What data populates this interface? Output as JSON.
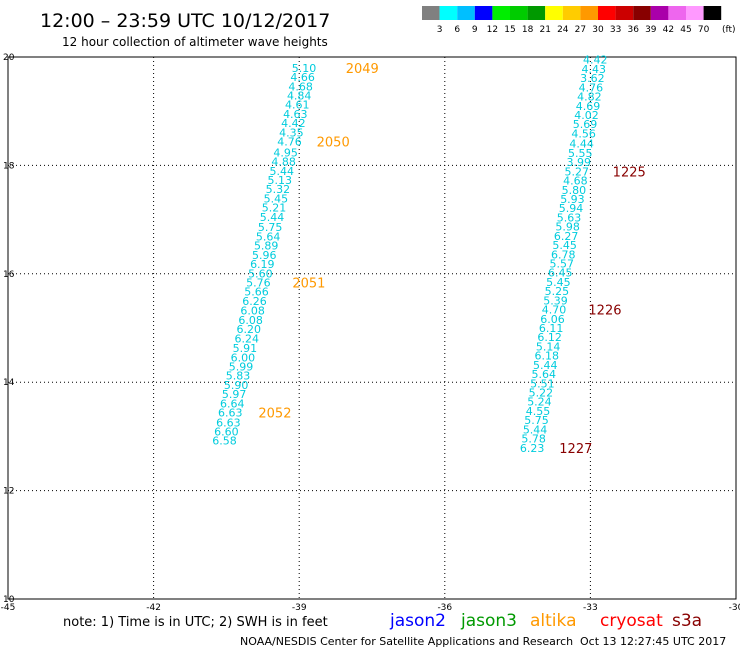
{
  "header": {
    "title": "12:00 – 23:59 UTC 10/12/2017",
    "subtitle": "12 hour collection of altimeter wave heights"
  },
  "colorbar": {
    "colors": [
      "#808080",
      "#00ffff",
      "#00bfff",
      "#0000ff",
      "#00ee00",
      "#00cc00",
      "#009900",
      "#ffff00",
      "#ffcc00",
      "#ff9900",
      "#ff0000",
      "#cc0000",
      "#880000",
      "#aa00aa",
      "#ee66ee",
      "#ff99ff",
      "#000000"
    ],
    "labels": [
      "3",
      "6",
      "9",
      "12",
      "15",
      "18",
      "21",
      "24",
      "27",
      "30",
      "33",
      "36",
      "39",
      "42",
      "45",
      "70"
    ],
    "unit": "(ft)"
  },
  "footer": {
    "note": "note:  1) Time is in UTC;  2) SWH is in feet",
    "legend": [
      {
        "name": "jason2",
        "color": "#0000ff"
      },
      {
        "name": "jason3",
        "color": "#009900"
      },
      {
        "name": "altika",
        "color": "#ff9900"
      },
      {
        "name": "cryosat",
        "color": "#ff0000"
      },
      {
        "name": "s3a",
        "color": "#880000"
      }
    ],
    "credit": "NOAA/NESDIS Center for Satellite Applications and Research",
    "timestamp": "Oct 13 12:27:45 UTC 2017"
  },
  "chart_data": {
    "type": "scatter",
    "xlim": [
      -45,
      -30
    ],
    "ylim": [
      10,
      20
    ],
    "xticks": [
      "-45",
      "-42",
      "-39",
      "-36",
      "-33",
      "-30"
    ],
    "yticks": [
      "10",
      "12",
      "14",
      "16",
      "18",
      "20"
    ],
    "grid": true,
    "value_color": "#00ccdd",
    "tracks": [
      {
        "satellite": "altika",
        "points": [
          {
            "x": -38.9,
            "y": 19.8,
            "v": "5.10"
          },
          {
            "x": -38.93,
            "y": 19.63,
            "v": "4.66"
          },
          {
            "x": -38.97,
            "y": 19.46,
            "v": "4.68"
          },
          {
            "x": -39.0,
            "y": 19.29,
            "v": "4.84"
          },
          {
            "x": -39.04,
            "y": 19.12,
            "v": "4.61"
          },
          {
            "x": -39.08,
            "y": 18.95,
            "v": "4.63"
          },
          {
            "x": -39.12,
            "y": 18.78,
            "v": "4.42"
          },
          {
            "x": -39.16,
            "y": 18.61,
            "v": "4.35"
          },
          {
            "x": -39.2,
            "y": 18.44,
            "v": "4.76"
          },
          {
            "x": -39.28,
            "y": 18.24,
            "v": "4.95"
          },
          {
            "x": -39.32,
            "y": 18.07,
            "v": "4.88"
          },
          {
            "x": -39.36,
            "y": 17.9,
            "v": "5.44"
          },
          {
            "x": -39.4,
            "y": 17.73,
            "v": "5.13"
          },
          {
            "x": -39.44,
            "y": 17.56,
            "v": "5.32"
          },
          {
            "x": -39.48,
            "y": 17.39,
            "v": "5.45"
          },
          {
            "x": -39.52,
            "y": 17.22,
            "v": "5.21"
          },
          {
            "x": -39.56,
            "y": 17.05,
            "v": "5.44"
          },
          {
            "x": -39.6,
            "y": 16.86,
            "v": "5.75"
          },
          {
            "x": -39.64,
            "y": 16.69,
            "v": "5.64"
          },
          {
            "x": -39.68,
            "y": 16.52,
            "v": "5.89"
          },
          {
            "x": -39.72,
            "y": 16.35,
            "v": "5.96"
          },
          {
            "x": -39.76,
            "y": 16.18,
            "v": "6.19"
          },
          {
            "x": -39.8,
            "y": 16.01,
            "v": "5.60"
          },
          {
            "x": -39.84,
            "y": 15.84,
            "v": "5.76"
          },
          {
            "x": -39.88,
            "y": 15.67,
            "v": "5.66"
          },
          {
            "x": -39.92,
            "y": 15.5,
            "v": "6.26"
          },
          {
            "x": -39.96,
            "y": 15.32,
            "v": "6.08"
          },
          {
            "x": -40.0,
            "y": 15.15,
            "v": "6.08"
          },
          {
            "x": -40.04,
            "y": 14.98,
            "v": "6.20"
          },
          {
            "x": -40.08,
            "y": 14.81,
            "v": "6.24"
          },
          {
            "x": -40.12,
            "y": 14.63,
            "v": "5.91"
          },
          {
            "x": -40.16,
            "y": 14.46,
            "v": "6.00"
          },
          {
            "x": -40.2,
            "y": 14.29,
            "v": "5.99"
          },
          {
            "x": -40.26,
            "y": 14.12,
            "v": "5.83"
          },
          {
            "x": -40.3,
            "y": 13.95,
            "v": "5.90"
          },
          {
            "x": -40.34,
            "y": 13.78,
            "v": "5.97"
          },
          {
            "x": -40.38,
            "y": 13.61,
            "v": "6.64"
          },
          {
            "x": -40.42,
            "y": 13.44,
            "v": "6.63"
          },
          {
            "x": -40.46,
            "y": 13.26,
            "v": "6.63"
          },
          {
            "x": -40.5,
            "y": 13.09,
            "v": "6.60"
          },
          {
            "x": -40.54,
            "y": 12.92,
            "v": "6.58"
          }
        ],
        "passes": [
          {
            "label": "2049",
            "x": -37.7,
            "y": 19.8
          },
          {
            "label": "2050",
            "x": -38.3,
            "y": 18.44
          },
          {
            "label": "2051",
            "x": -38.8,
            "y": 15.84
          },
          {
            "label": "2052",
            "x": -39.5,
            "y": 13.44
          }
        ]
      },
      {
        "satellite": "s3a",
        "points": [
          {
            "x": -32.9,
            "y": 19.95,
            "v": "4.42"
          },
          {
            "x": -32.93,
            "y": 19.78,
            "v": "4.43"
          },
          {
            "x": -32.96,
            "y": 19.61,
            "v": "3.62"
          },
          {
            "x": -32.99,
            "y": 19.44,
            "v": "4.76"
          },
          {
            "x": -33.02,
            "y": 19.27,
            "v": "4.82"
          },
          {
            "x": -33.05,
            "y": 19.1,
            "v": "4.69"
          },
          {
            "x": -33.08,
            "y": 18.93,
            "v": "4.02"
          },
          {
            "x": -33.11,
            "y": 18.76,
            "v": "5.69"
          },
          {
            "x": -33.14,
            "y": 18.59,
            "v": "4.56"
          },
          {
            "x": -33.18,
            "y": 18.4,
            "v": "4.44"
          },
          {
            "x": -33.21,
            "y": 18.23,
            "v": "5.55"
          },
          {
            "x": -33.24,
            "y": 18.06,
            "v": "3.99"
          },
          {
            "x": -33.28,
            "y": 17.89,
            "v": "5.27"
          },
          {
            "x": -33.31,
            "y": 17.72,
            "v": "4.68"
          },
          {
            "x": -33.34,
            "y": 17.55,
            "v": "5.80"
          },
          {
            "x": -33.37,
            "y": 17.38,
            "v": "5.93"
          },
          {
            "x": -33.4,
            "y": 17.21,
            "v": "5.94"
          },
          {
            "x": -33.44,
            "y": 17.04,
            "v": "5.63"
          },
          {
            "x": -33.47,
            "y": 16.87,
            "v": "5.98"
          },
          {
            "x": -33.5,
            "y": 16.7,
            "v": "6.27"
          },
          {
            "x": -33.53,
            "y": 16.53,
            "v": "5.45"
          },
          {
            "x": -33.56,
            "y": 16.36,
            "v": "6.78"
          },
          {
            "x": -33.59,
            "y": 16.19,
            "v": "5.57"
          },
          {
            "x": -33.62,
            "y": 16.02,
            "v": "6.45"
          },
          {
            "x": -33.66,
            "y": 15.85,
            "v": "5.45"
          },
          {
            "x": -33.69,
            "y": 15.68,
            "v": "5.25"
          },
          {
            "x": -33.72,
            "y": 15.51,
            "v": "5.39"
          },
          {
            "x": -33.75,
            "y": 15.34,
            "v": "4.70"
          },
          {
            "x": -33.78,
            "y": 15.17,
            "v": "6.06"
          },
          {
            "x": -33.81,
            "y": 15.0,
            "v": "6.11"
          },
          {
            "x": -33.84,
            "y": 14.83,
            "v": "6.12"
          },
          {
            "x": -33.87,
            "y": 14.66,
            "v": "5.14"
          },
          {
            "x": -33.9,
            "y": 14.49,
            "v": "6.18"
          },
          {
            "x": -33.93,
            "y": 14.32,
            "v": "5.44"
          },
          {
            "x": -33.96,
            "y": 14.15,
            "v": "5.64"
          },
          {
            "x": -33.99,
            "y": 13.98,
            "v": "5.51"
          },
          {
            "x": -34.02,
            "y": 13.81,
            "v": "5.22"
          },
          {
            "x": -34.05,
            "y": 13.64,
            "v": "5.24"
          },
          {
            "x": -34.08,
            "y": 13.47,
            "v": "4.55"
          },
          {
            "x": -34.11,
            "y": 13.3,
            "v": "5.75"
          },
          {
            "x": -34.14,
            "y": 13.13,
            "v": "5.44"
          },
          {
            "x": -34.17,
            "y": 12.96,
            "v": "5.78"
          },
          {
            "x": -34.2,
            "y": 12.79,
            "v": "6.23"
          }
        ],
        "passes": [
          {
            "label": "1225",
            "x": -32.2,
            "y": 17.89
          },
          {
            "label": "1226",
            "x": -32.7,
            "y": 15.34
          },
          {
            "label": "1227",
            "x": -33.3,
            "y": 12.79
          }
        ]
      }
    ]
  }
}
